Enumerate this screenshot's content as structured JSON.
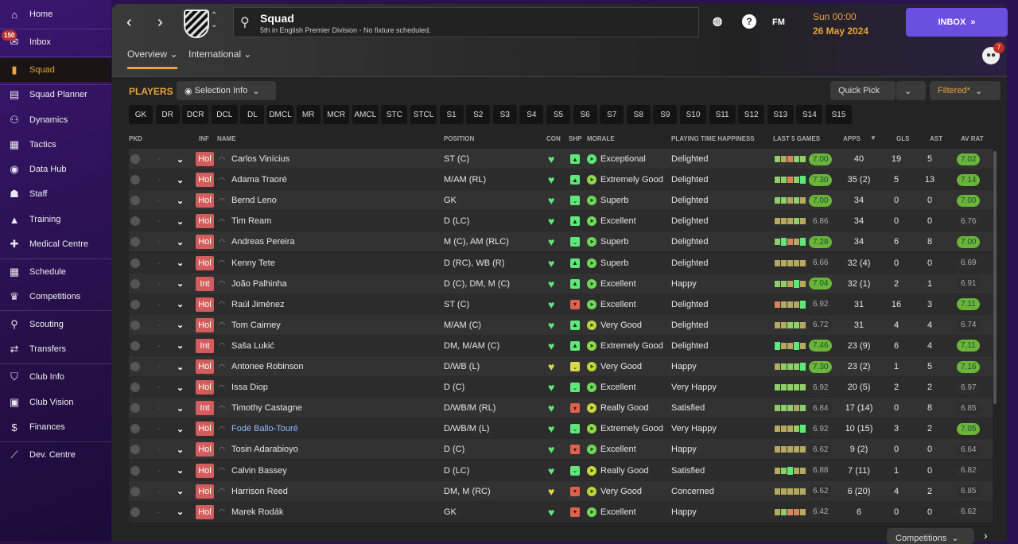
{
  "sidebar": {
    "items": [
      {
        "label": "Home",
        "icon": "home-icon",
        "glyph": "⌂"
      },
      {
        "label": "Inbox",
        "icon": "inbox-icon",
        "glyph": "✉"
      },
      {
        "label": "Squad",
        "icon": "shirt-icon",
        "glyph": "▮",
        "active": true
      },
      {
        "label": "Squad Planner",
        "icon": "clipboard-icon",
        "glyph": "▤"
      },
      {
        "label": "Dynamics",
        "icon": "dynamics-icon",
        "glyph": "⚇"
      },
      {
        "label": "Tactics",
        "icon": "tactics-icon",
        "glyph": "▦"
      },
      {
        "label": "Data Hub",
        "icon": "data-hub-icon",
        "glyph": "◉"
      },
      {
        "label": "Staff",
        "icon": "staff-icon",
        "glyph": "☗"
      },
      {
        "label": "Training",
        "icon": "training-icon",
        "glyph": "▲"
      },
      {
        "label": "Medical Centre",
        "icon": "medical-icon",
        "glyph": "✚"
      },
      {
        "label": "Schedule",
        "icon": "calendar-icon",
        "glyph": "▦"
      },
      {
        "label": "Competitions",
        "icon": "trophy-icon",
        "glyph": "♛"
      },
      {
        "label": "Scouting",
        "icon": "search-icon",
        "glyph": "⚲"
      },
      {
        "label": "Transfers",
        "icon": "transfers-icon",
        "glyph": "⇄"
      },
      {
        "label": "Club Info",
        "icon": "shield-icon",
        "glyph": "⛉"
      },
      {
        "label": "Club Vision",
        "icon": "briefcase-icon",
        "glyph": "▣"
      },
      {
        "label": "Finances",
        "icon": "finances-icon",
        "glyph": "$"
      },
      {
        "label": "Dev. Centre",
        "icon": "dev-centre-icon",
        "glyph": "⟋"
      }
    ],
    "inbox_badge": "150"
  },
  "header": {
    "title": "Squad",
    "subtitle": "5th in English Premier Division - No fixture scheduled.",
    "tabs": [
      "Overview",
      "International"
    ],
    "fm_label": "FM",
    "time": "Sun 00:00",
    "date": "26 May 2024",
    "inbox_button": "INBOX",
    "notif_count": "7"
  },
  "toolbar": {
    "players_label": "PLAYERS",
    "selection_info": "Selection Info",
    "quick_pick": "Quick Pick",
    "filtered": "Filtered*",
    "positions": [
      "GK",
      "DR",
      "DCR",
      "DCL",
      "DL",
      "DMCL",
      "MR",
      "MCR",
      "AMCL",
      "STC",
      "STCL",
      "S1",
      "S2",
      "S3",
      "S4",
      "S5",
      "S6",
      "S7",
      "S8",
      "S9",
      "S10",
      "S11",
      "S12",
      "S13",
      "S14",
      "S15"
    ]
  },
  "table": {
    "columns": [
      "PKD",
      "INF",
      "NAME",
      "POSITION",
      "CON",
      "SHP",
      "MORALE",
      "PLAYING TIME HAPPINESS",
      "LAST 5 GAMES",
      "APPS",
      "GLS",
      "AST",
      "AV RAT"
    ],
    "sort_column": "APPS",
    "rows": [
      [
        "Hol",
        "Carlos Vinícius",
        "ST (C)",
        "g",
        "up",
        "Exceptional",
        "Delighted",
        "lyoll",
        "7.00",
        "40",
        "19",
        "5",
        "7.02"
      ],
      [
        "Hol",
        "Adama Traoré",
        "M/AM (RL)",
        "g",
        "up",
        "Extremely Good",
        "Delighted",
        "llolg",
        "7.30",
        "35 (2)",
        "5",
        "13",
        "7.14"
      ],
      [
        "Hol",
        "Bernd Leno",
        "GK",
        "g",
        "ok",
        "Superb",
        "Delighted",
        "llyly",
        "7.00",
        "34",
        "0",
        "0",
        "7.00"
      ],
      [
        "Hol",
        "Tim Ream",
        "D (LC)",
        "g",
        "up",
        "Excellent",
        "Delighted",
        "yyyly",
        "6.86",
        "34",
        "0",
        "0",
        "6.76"
      ],
      [
        "Hol",
        "Andreas Pereira",
        "M (C), AM (RLC)",
        "g",
        "ok",
        "Superb",
        "Delighted",
        "lgoyg",
        "7.28",
        "34",
        "6",
        "8",
        "7.00"
      ],
      [
        "Hol",
        "Kenny Tete",
        "D (RC), WB (R)",
        "g",
        "up",
        "Superb",
        "Delighted",
        "yyyyy",
        "6.66",
        "32 (4)",
        "0",
        "0",
        "6.69"
      ],
      [
        "Int",
        "João Palhinha",
        "D (C), DM, M (C)",
        "g",
        "up",
        "Excellent",
        "Happy",
        "llygy",
        "7.04",
        "32 (1)",
        "2",
        "1",
        "6.91"
      ],
      [
        "Hol",
        "Raúl Jiménez",
        "ST (C)",
        "g",
        "down",
        "Excellent",
        "Delighted",
        "oyyyg",
        "6.92",
        "31",
        "16",
        "3",
        "7.11"
      ],
      [
        "Hol",
        "Tom Cairney",
        "M/AM (C)",
        "g",
        "up",
        "Very Good",
        "Delighted",
        "yylly",
        "6.72",
        "31",
        "4",
        "4",
        "6.74"
      ],
      [
        "Int",
        "Saša Lukić",
        "DM, M/AM (C)",
        "g",
        "up",
        "Extremely Good",
        "Delighted",
        "gyygy",
        "7.46",
        "23 (9)",
        "6",
        "4",
        "7.11"
      ],
      [
        "Hol",
        "Antonee Robinson",
        "D/WB (L)",
        "y",
        "meh",
        "Very Good",
        "Happy",
        "ylllg",
        "7.30",
        "23 (2)",
        "1",
        "5",
        "7.16"
      ],
      [
        "Hol",
        "Issa Diop",
        "D (C)",
        "g",
        "ok",
        "Excellent",
        "Very Happy",
        "lllll",
        "6.92",
        "20 (5)",
        "2",
        "2",
        "6.97"
      ],
      [
        "Int",
        "Timothy Castagne",
        "D/WB/M (RL)",
        "g",
        "down",
        "Really Good",
        "Satisfied",
        "lllyl",
        "6.84",
        "17 (14)",
        "0",
        "8",
        "6.85"
      ],
      [
        "Hol",
        "Fodé Ballo-Touré",
        "D/WB/M (L)",
        "g",
        "ok",
        "Extremely Good",
        "Very Happy",
        "yyylg",
        "6.92",
        "10 (15)",
        "3",
        "2",
        "7.05"
      ],
      [
        "Hol",
        "Tosin Adarabioyo",
        "D (C)",
        "g",
        "down",
        "Excellent",
        "Happy",
        "yyyyy",
        "6.62",
        "9 (2)",
        "0",
        "0",
        "6.64"
      ],
      [
        "Hol",
        "Calvin Bassey",
        "D (LC)",
        "g",
        "ok",
        "Really Good",
        "Satisfied",
        "ylgyy",
        "6.88",
        "7 (11)",
        "1",
        "0",
        "6.82"
      ],
      [
        "Hol",
        "Harrison Reed",
        "DM, M (RC)",
        "y",
        "down",
        "Very Good",
        "Concerned",
        "yyyyy",
        "6.62",
        "6 (20)",
        "4",
        "2",
        "6.85"
      ],
      [
        "Hol",
        "Marek Rodák",
        "GK",
        "g",
        "down",
        "Excellent",
        "Happy",
        "ylooy",
        "6.42",
        "6",
        "0",
        "0",
        "6.62"
      ]
    ],
    "highlight_player": "Fodé Ballo-Touré"
  },
  "footer": {
    "competitions": "Competitions"
  },
  "colors": {
    "accent": "#e8a33d",
    "inbox": "#6a4fe0",
    "good_rating": "#6cb33a",
    "form_green": "#5ee87a",
    "form_light": "#8fcf6a",
    "form_olive": "#b5a860",
    "form_orange": "#d9845a",
    "link": "#8fb8ff"
  }
}
